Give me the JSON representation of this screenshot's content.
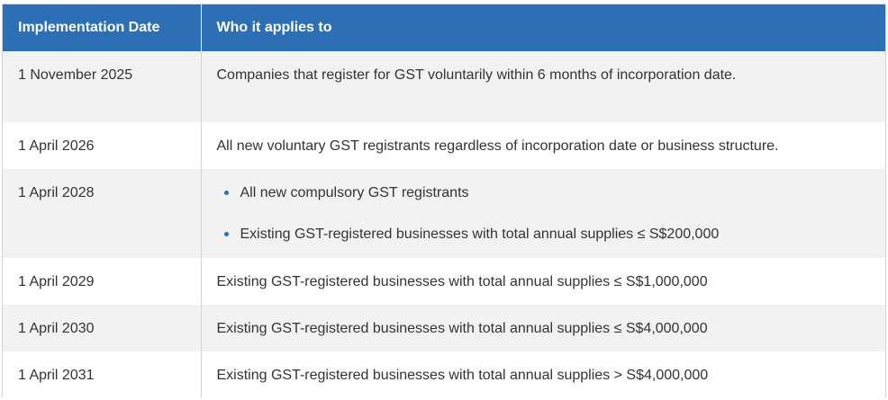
{
  "table": {
    "headers": {
      "date": "Implementation Date",
      "applies": "Who it applies to"
    },
    "rows": [
      {
        "date": "1 November 2025",
        "applies": "Companies that register for GST voluntarily within 6 months of incorporation date."
      },
      {
        "date": "1 April 2026",
        "applies": "All new voluntary GST registrants regardless of incorporation date or business structure."
      },
      {
        "date": "1 April 2028",
        "bullets": [
          "All new compulsory GST registrants",
          "Existing GST-registered businesses with total annual supplies ≤ S$200,000"
        ]
      },
      {
        "date": "1 April 2029",
        "applies": "Existing GST-registered businesses with total annual supplies ≤ S$1,000,000"
      },
      {
        "date": "1 April 2030",
        "applies": "Existing GST-registered businesses with total annual supplies ≤ S$4,000,000"
      },
      {
        "date": "1 April 2031",
        "applies": "Existing GST-registered businesses with total annual supplies > S$4,000,000"
      }
    ]
  },
  "colors": {
    "header_bg": "#2d6fb5",
    "stripe_bg": "#f2f2f2",
    "bullet": "#2d6fb5"
  }
}
